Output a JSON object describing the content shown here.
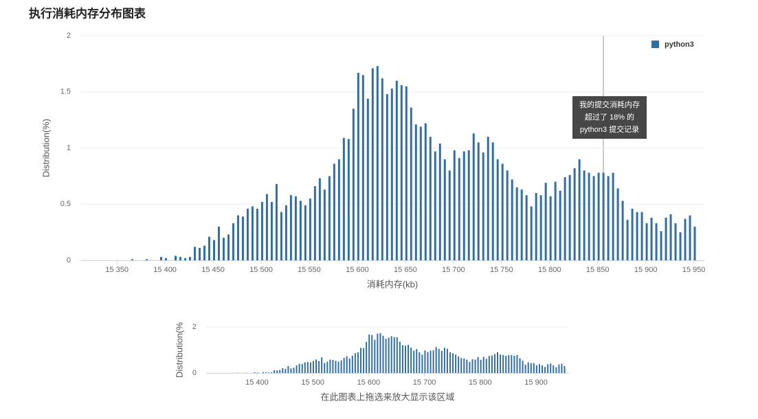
{
  "title": "执行消耗内存分布图表",
  "chart_data": [
    {
      "type": "bar",
      "x_label": "消耗内存(kb)",
      "y_label": "Distribution(%)",
      "x": [
        15366,
        15371,
        15376,
        15381,
        15386,
        15391,
        15396,
        15401,
        15406,
        15411,
        15416,
        15421,
        15426,
        15431,
        15436,
        15441,
        15446,
        15451,
        15456,
        15461,
        15466,
        15471,
        15476,
        15481,
        15486,
        15491,
        15496,
        15501,
        15506,
        15511,
        15516,
        15521,
        15526,
        15531,
        15536,
        15541,
        15546,
        15551,
        15556,
        15561,
        15566,
        15571,
        15576,
        15581,
        15586,
        15591,
        15596,
        15601,
        15606,
        15611,
        15616,
        15621,
        15626,
        15631,
        15636,
        15641,
        15646,
        15651,
        15656,
        15661,
        15666,
        15671,
        15676,
        15681,
        15686,
        15691,
        15696,
        15701,
        15706,
        15711,
        15716,
        15721,
        15726,
        15731,
        15736,
        15741,
        15746,
        15751,
        15756,
        15761,
        15766,
        15771,
        15776,
        15781,
        15786,
        15791,
        15796,
        15801,
        15806,
        15811,
        15816,
        15821,
        15826,
        15831,
        15836,
        15841,
        15846,
        15851,
        15856,
        15861,
        15866,
        15871,
        15876,
        15881,
        15886,
        15891,
        15896,
        15901,
        15906,
        15911,
        15916,
        15921,
        15926,
        15931,
        15936,
        15941,
        15946,
        15951
      ],
      "series": [
        {
          "name": "python3",
          "color": "#326ea3",
          "values": [
            0.01,
            0,
            0,
            0.01,
            0,
            0,
            0.03,
            0.02,
            0,
            0.04,
            0.03,
            0.02,
            0.03,
            0.12,
            0.11,
            0.13,
            0.21,
            0.18,
            0.3,
            0.2,
            0.23,
            0.33,
            0.4,
            0.39,
            0.46,
            0.48,
            0.46,
            0.52,
            0.59,
            0.52,
            0.68,
            0.43,
            0.49,
            0.58,
            0.57,
            0.53,
            0.49,
            0.55,
            0.66,
            0.73,
            0.63,
            0.75,
            0.86,
            0.9,
            1.09,
            1.08,
            1.35,
            1.67,
            1.65,
            1.44,
            1.71,
            1.73,
            1.62,
            1.48,
            1.53,
            1.6,
            1.56,
            1.55,
            1.36,
            1.21,
            1.19,
            1.22,
            1.1,
            0.97,
            1.04,
            0.9,
            0.8,
            0.98,
            0.91,
            0.97,
            0.98,
            1.13,
            1.05,
            0.96,
            1.1,
            1.05,
            0.9,
            0.86,
            0.8,
            0.72,
            0.65,
            0.63,
            0.58,
            0.48,
            0.6,
            0.58,
            0.69,
            0.57,
            0.7,
            0.62,
            0.74,
            0.76,
            0.82,
            0.9,
            0.8,
            0.78,
            0.75,
            0.78,
            0.78,
            0.75,
            0.78,
            0.64,
            0.53,
            0.36,
            0.46,
            0.43,
            0.43,
            0.33,
            0.38,
            0.33,
            0.26,
            0.38,
            0.41,
            0.33,
            0.25,
            0.37,
            0.4,
            0.3
          ]
        }
      ],
      "xlim": [
        15312,
        15961
      ],
      "ylim": [
        0,
        2
      ],
      "xticks": [
        {
          "value": 15350,
          "label": "15 350"
        },
        {
          "value": 15400,
          "label": "15 400"
        },
        {
          "value": 15450,
          "label": "15 450"
        },
        {
          "value": 15500,
          "label": "15 500"
        },
        {
          "value": 15550,
          "label": "15 550"
        },
        {
          "value": 15600,
          "label": "15 600"
        },
        {
          "value": 15650,
          "label": "15 650"
        },
        {
          "value": 15700,
          "label": "15 700"
        },
        {
          "value": 15750,
          "label": "15 750"
        },
        {
          "value": 15800,
          "label": "15 800"
        },
        {
          "value": 15850,
          "label": "15 850"
        },
        {
          "value": 15900,
          "label": "15 900"
        },
        {
          "value": 15950,
          "label": "15 950"
        }
      ],
      "yticks": [
        0,
        0.5,
        1,
        1.5,
        2
      ],
      "grid": true,
      "legend": "top-right",
      "annotation": [
        "我的提交消耗内存",
        "超过了 18% 的",
        "python3 提交记录"
      ]
    },
    {
      "type": "bar",
      "x_label": "在此图表上拖选来放大显示该区域",
      "y_label": "Distribution(%",
      "xlim": [
        15309,
        15959
      ],
      "ylim": [
        0,
        2
      ],
      "xticks": [
        {
          "value": 15400,
          "label": "15 400"
        },
        {
          "value": 15500,
          "label": "15 500"
        },
        {
          "value": 15600,
          "label": "15 600"
        },
        {
          "value": 15700,
          "label": "15 700"
        },
        {
          "value": 15800,
          "label": "15 800"
        },
        {
          "value": 15900,
          "label": "15 900"
        }
      ],
      "yticks": [
        0,
        2
      ],
      "grid": true
    }
  ]
}
